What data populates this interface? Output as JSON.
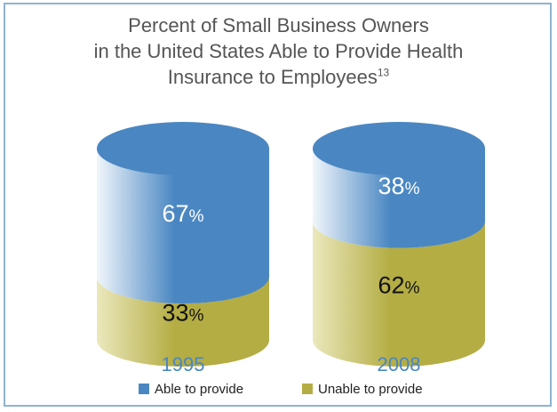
{
  "chart_data": {
    "type": "stacked-cylinder",
    "title": {
      "line1": "Percent of Small Business Owners",
      "line2": "in the United States Able to Provide Health",
      "line3": "Insurance to Employees",
      "footnote": "13"
    },
    "categories": [
      "1995",
      "2008"
    ],
    "series": [
      {
        "name": "Able to provide",
        "values": [
          67,
          38
        ],
        "color": "#4a87c2"
      },
      {
        "name": "Unable to provide",
        "values": [
          33,
          62
        ],
        "color": "#b4ad44"
      }
    ],
    "unit": "%",
    "legend_position": "bottom"
  },
  "colors": {
    "able": "#4a87c2",
    "able_light": "#f1f6fb",
    "unable": "#b4ad44",
    "unable_light": "#ebe8bd",
    "year_label": "#4a87c2",
    "frame": "#8fb3d2"
  }
}
